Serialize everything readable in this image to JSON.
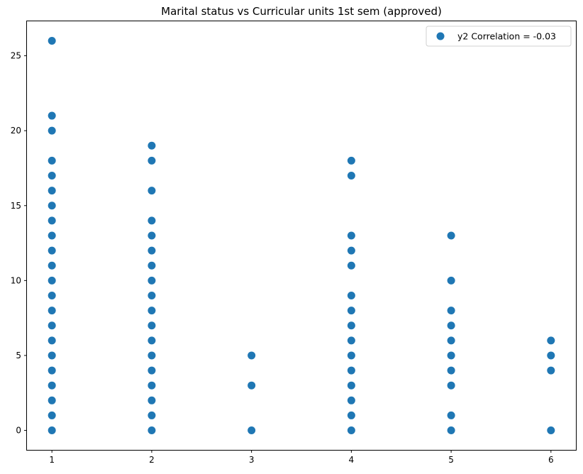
{
  "chart_data": {
    "type": "scatter",
    "title": "Marital status vs Curricular units 1st sem (approved)",
    "xlabel": "",
    "ylabel": "",
    "xlim": [
      0.75,
      6.25
    ],
    "ylim": [
      -1.3,
      27.3
    ],
    "xticks": [
      1,
      2,
      3,
      4,
      5,
      6
    ],
    "yticks": [
      0,
      5,
      10,
      15,
      20,
      25
    ],
    "grid": false,
    "legend_position": "top-right",
    "marker_color": "#1f77b4",
    "series": [
      {
        "name": "y2 Correlation = -0.03",
        "points": [
          [
            1,
            0
          ],
          [
            1,
            1
          ],
          [
            1,
            2
          ],
          [
            1,
            3
          ],
          [
            1,
            4
          ],
          [
            1,
            5
          ],
          [
            1,
            6
          ],
          [
            1,
            7
          ],
          [
            1,
            8
          ],
          [
            1,
            9
          ],
          [
            1,
            10
          ],
          [
            1,
            11
          ],
          [
            1,
            12
          ],
          [
            1,
            13
          ],
          [
            1,
            14
          ],
          [
            1,
            15
          ],
          [
            1,
            16
          ],
          [
            1,
            17
          ],
          [
            1,
            18
          ],
          [
            1,
            20
          ],
          [
            1,
            21
          ],
          [
            1,
            26
          ],
          [
            2,
            0
          ],
          [
            2,
            1
          ],
          [
            2,
            2
          ],
          [
            2,
            3
          ],
          [
            2,
            4
          ],
          [
            2,
            5
          ],
          [
            2,
            6
          ],
          [
            2,
            7
          ],
          [
            2,
            8
          ],
          [
            2,
            9
          ],
          [
            2,
            10
          ],
          [
            2,
            11
          ],
          [
            2,
            12
          ],
          [
            2,
            13
          ],
          [
            2,
            14
          ],
          [
            2,
            16
          ],
          [
            2,
            18
          ],
          [
            2,
            19
          ],
          [
            3,
            0
          ],
          [
            3,
            3
          ],
          [
            3,
            5
          ],
          [
            4,
            0
          ],
          [
            4,
            1
          ],
          [
            4,
            2
          ],
          [
            4,
            3
          ],
          [
            4,
            4
          ],
          [
            4,
            5
          ],
          [
            4,
            6
          ],
          [
            4,
            7
          ],
          [
            4,
            8
          ],
          [
            4,
            9
          ],
          [
            4,
            11
          ],
          [
            4,
            12
          ],
          [
            4,
            13
          ],
          [
            4,
            17
          ],
          [
            4,
            18
          ],
          [
            5,
            0
          ],
          [
            5,
            1
          ],
          [
            5,
            3
          ],
          [
            5,
            4
          ],
          [
            5,
            5
          ],
          [
            5,
            6
          ],
          [
            5,
            7
          ],
          [
            5,
            8
          ],
          [
            5,
            10
          ],
          [
            5,
            13
          ],
          [
            6,
            0
          ],
          [
            6,
            4
          ],
          [
            6,
            5
          ],
          [
            6,
            6
          ]
        ]
      }
    ]
  }
}
